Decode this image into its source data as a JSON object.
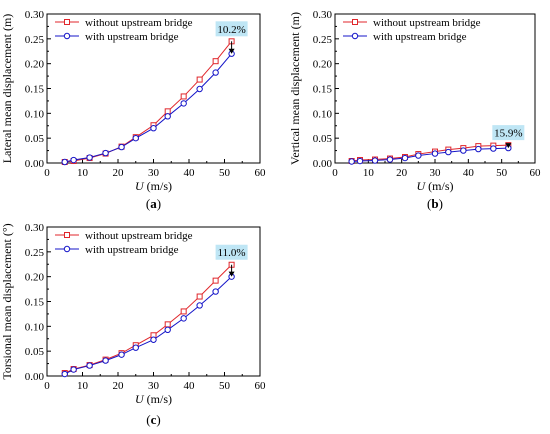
{
  "colors": {
    "without": "#e0262b",
    "with": "#1414c8",
    "callout_bg": "#bfe6f5",
    "axis": "#000000"
  },
  "chart_data": [
    {
      "id": "a",
      "type": "line",
      "panel_label": "(a)",
      "panel_letter": "a",
      "xlabel": "U (m/s)",
      "xlabel_var": "U",
      "xlabel_unit": " (m/s)",
      "ylabel": "Lateral mean displacement (m)",
      "xlim": [
        0,
        60
      ],
      "ylim": [
        0,
        0.3
      ],
      "xticks": [
        0,
        10,
        20,
        30,
        40,
        50,
        60
      ],
      "xtick_labels": [
        "0",
        "10",
        "20",
        "30",
        "40",
        "50",
        "60"
      ],
      "yticks": [
        0,
        0.05,
        0.1,
        0.15,
        0.2,
        0.25,
        0.3
      ],
      "ytick_labels": [
        "0.00",
        "0.05",
        "0.10",
        "0.15",
        "0.20",
        "0.25",
        "0.30"
      ],
      "grid": false,
      "legend_position": "top-left",
      "series": [
        {
          "name": "without upstream bridge",
          "marker": "square",
          "x": [
            5,
            7.5,
            12,
            16.5,
            21,
            25,
            30,
            34,
            38.5,
            43,
            47.5,
            52
          ],
          "y": [
            0.002,
            0.004,
            0.01,
            0.019,
            0.033,
            0.052,
            0.076,
            0.104,
            0.134,
            0.168,
            0.205,
            0.245
          ]
        },
        {
          "name": "with upstream bridge",
          "marker": "circle",
          "x": [
            5,
            7.5,
            12,
            16.5,
            21,
            25,
            30,
            34,
            38.5,
            43,
            47.5,
            52
          ],
          "y": [
            0.002,
            0.006,
            0.011,
            0.02,
            0.032,
            0.05,
            0.07,
            0.094,
            0.12,
            0.149,
            0.182,
            0.22
          ]
        }
      ],
      "annotation": {
        "text": "10.2%",
        "x": 52,
        "y_from": 0.245,
        "y_to": 0.22
      }
    },
    {
      "id": "b",
      "type": "line",
      "panel_label": "(b)",
      "panel_letter": "b",
      "xlabel": "U (m/s)",
      "xlabel_var": "U",
      "xlabel_unit": " (m/s)",
      "ylabel": "Vertical mean displacement (m)",
      "xlim": [
        0,
        60
      ],
      "ylim": [
        0,
        0.3
      ],
      "xticks": [
        0,
        10,
        20,
        30,
        40,
        50,
        60
      ],
      "xtick_labels": [
        "0",
        "10",
        "20",
        "30",
        "40",
        "50",
        "60"
      ],
      "yticks": [
        0,
        0.05,
        0.1,
        0.15,
        0.2,
        0.25,
        0.3
      ],
      "ytick_labels": [
        "0.00",
        "0.05",
        "0.10",
        "0.15",
        "0.20",
        "0.25",
        "0.30"
      ],
      "grid": false,
      "legend_position": "top-left",
      "series": [
        {
          "name": "without upstream bridge",
          "marker": "square",
          "x": [
            5,
            7.5,
            12,
            16.5,
            21,
            25,
            30,
            34,
            38.5,
            43,
            47.5,
            52
          ],
          "y": [
            0.004,
            0.006,
            0.007,
            0.009,
            0.012,
            0.018,
            0.023,
            0.027,
            0.03,
            0.034,
            0.035,
            0.036
          ]
        },
        {
          "name": "with upstream bridge",
          "marker": "circle",
          "x": [
            5,
            7.5,
            12,
            16.5,
            21,
            25,
            30,
            34,
            38.5,
            43,
            47.5,
            52
          ],
          "y": [
            0.003,
            0.004,
            0.005,
            0.007,
            0.01,
            0.015,
            0.019,
            0.022,
            0.025,
            0.028,
            0.029,
            0.03
          ]
        }
      ],
      "annotation": {
        "text": "15.9%",
        "x": 52,
        "y_from": 0.036,
        "y_to": 0.03
      }
    },
    {
      "id": "c",
      "type": "line",
      "panel_label": "(c)",
      "panel_letter": "c",
      "xlabel": "U (m/s)",
      "xlabel_var": "U",
      "xlabel_unit": " (m/s)",
      "ylabel": "Torsional mean displacement (°)",
      "xlim": [
        0,
        60
      ],
      "ylim": [
        0,
        0.3
      ],
      "xticks": [
        0,
        10,
        20,
        30,
        40,
        50,
        60
      ],
      "xtick_labels": [
        "0",
        "10",
        "20",
        "30",
        "40",
        "50",
        "60"
      ],
      "yticks": [
        0,
        0.05,
        0.1,
        0.15,
        0.2,
        0.25,
        0.3
      ],
      "ytick_labels": [
        "0.00",
        "0.05",
        "0.10",
        "0.15",
        "0.20",
        "0.25",
        "0.30"
      ],
      "grid": false,
      "legend_position": "top-left",
      "series": [
        {
          "name": "without upstream bridge",
          "marker": "square",
          "x": [
            5,
            7.5,
            12,
            16.5,
            21,
            25,
            30,
            34,
            38.5,
            43,
            47.5,
            52
          ],
          "y": [
            0.006,
            0.014,
            0.022,
            0.033,
            0.046,
            0.062,
            0.082,
            0.104,
            0.13,
            0.16,
            0.192,
            0.224
          ]
        },
        {
          "name": "with upstream bridge",
          "marker": "circle",
          "x": [
            5,
            7.5,
            12,
            16.5,
            21,
            25,
            30,
            34,
            38.5,
            43,
            47.5,
            52
          ],
          "y": [
            0.004,
            0.013,
            0.021,
            0.031,
            0.043,
            0.057,
            0.073,
            0.093,
            0.116,
            0.142,
            0.17,
            0.2
          ]
        }
      ],
      "annotation": {
        "text": "11.0%",
        "x": 52,
        "y_from": 0.224,
        "y_to": 0.2
      }
    }
  ]
}
